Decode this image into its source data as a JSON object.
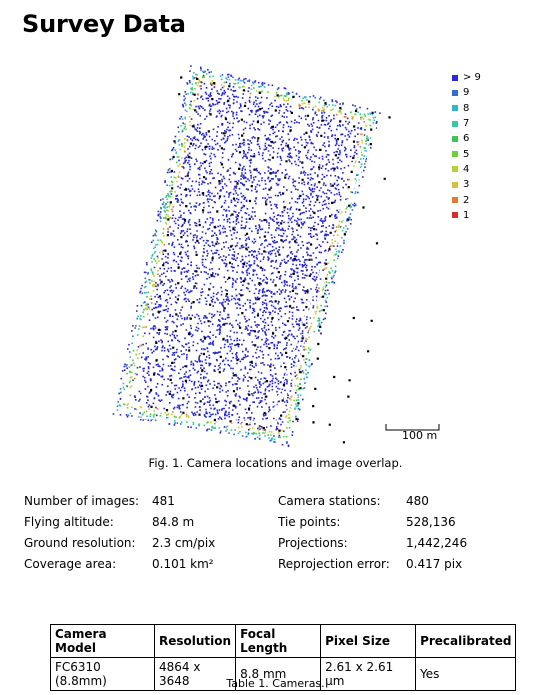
{
  "title": "Survey Data",
  "figure_caption": "Fig. 1. Camera locations and image overlap.",
  "scale_bar_label": "100 m",
  "legend": [
    {
      "label": "> 9",
      "color": "#2a2ad6"
    },
    {
      "label": "9",
      "color": "#2f6fd0"
    },
    {
      "label": "8",
      "color": "#33b4d6"
    },
    {
      "label": "7",
      "color": "#35c9a3"
    },
    {
      "label": "6",
      "color": "#3fc45a"
    },
    {
      "label": "5",
      "color": "#6ccf3b"
    },
    {
      "label": "4",
      "color": "#b4d336"
    },
    {
      "label": "3",
      "color": "#d8c13a"
    },
    {
      "label": "2",
      "color": "#e07a32"
    },
    {
      "label": "1",
      "color": "#d92b2b"
    }
  ],
  "stats_left": [
    {
      "label": "Number of images:",
      "value": "481"
    },
    {
      "label": "Flying altitude:",
      "value": "84.8 m"
    },
    {
      "label": "Ground resolution:",
      "value": "2.3 cm/pix"
    },
    {
      "label": "Coverage area:",
      "value": "0.101 km²"
    }
  ],
  "stats_right": [
    {
      "label": "Camera stations:",
      "value": "480"
    },
    {
      "label": "Tie points:",
      "value": "528,136"
    },
    {
      "label": "Projections:",
      "value": "1,442,246"
    },
    {
      "label": "Reprojection error:",
      "value": "0.417 pix"
    }
  ],
  "camera_table": {
    "headers": [
      "Camera Model",
      "Resolution",
      "Focal Length",
      "Pixel Size",
      "Precalibrated"
    ],
    "rows": [
      [
        "FC6310 (8.8mm)",
        "4864 x 3648",
        "8.8 mm",
        "2.61 x 2.61 μm",
        "Yes"
      ]
    ]
  },
  "table_caption": "Table 1. Cameras."
}
